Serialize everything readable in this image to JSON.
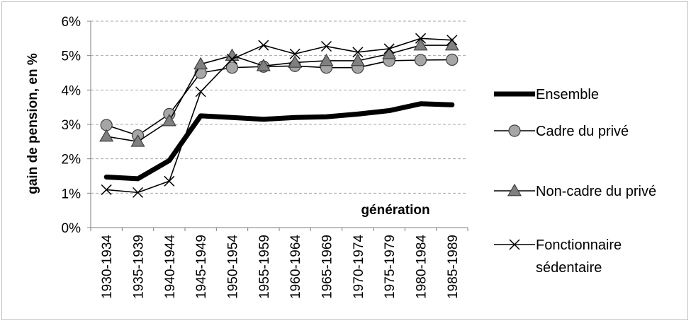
{
  "chart_data": {
    "type": "line",
    "ylabel": "gain de pension, en %",
    "xlabel": "génération",
    "categories": [
      "1930-1934",
      "1935-1939",
      "1940-1944",
      "1945-1949",
      "1950-1954",
      "1955-1959",
      "1960-1964",
      "1965-1969",
      "1970-1974",
      "1975-1979",
      "1980-1984",
      "1985-1989"
    ],
    "ylim": [
      0,
      6
    ],
    "yticks": [
      0,
      1,
      2,
      3,
      4,
      5,
      6
    ],
    "ytick_labels": [
      "0%",
      "1%",
      "2%",
      "3%",
      "4%",
      "5%",
      "6%"
    ],
    "grid": "horizontal dashed",
    "legend_position": "right",
    "series": [
      {
        "name": "Ensemble",
        "marker": "none",
        "color": "#000000",
        "values": [
          1.47,
          1.42,
          1.95,
          3.25,
          3.2,
          3.15,
          3.2,
          3.22,
          3.3,
          3.4,
          3.6,
          3.57
        ]
      },
      {
        "name": "Cadre du privé",
        "marker": "circle",
        "color": "#a6a6a6",
        "values": [
          2.98,
          2.68,
          3.3,
          4.5,
          4.65,
          4.68,
          4.7,
          4.65,
          4.65,
          4.85,
          4.87,
          4.88
        ]
      },
      {
        "name": "Non-cadre du privé",
        "marker": "triangle",
        "color": "#808080",
        "values": [
          2.65,
          2.5,
          3.1,
          4.75,
          5.0,
          4.7,
          4.8,
          4.85,
          4.85,
          5.05,
          5.3,
          5.3
        ]
      },
      {
        "name": "Fonctionnaire sédentaire",
        "marker": "x",
        "color": "#000000",
        "values": [
          1.1,
          1.02,
          1.35,
          3.95,
          4.9,
          5.3,
          5.05,
          5.27,
          5.1,
          5.2,
          5.5,
          5.45
        ]
      }
    ],
    "legend_lines": [
      [
        "Ensemble"
      ],
      [
        "Cadre du privé"
      ],
      [
        "Non-cadre du privé"
      ],
      [
        "Fonctionnaire",
        "sédentaire"
      ]
    ]
  }
}
